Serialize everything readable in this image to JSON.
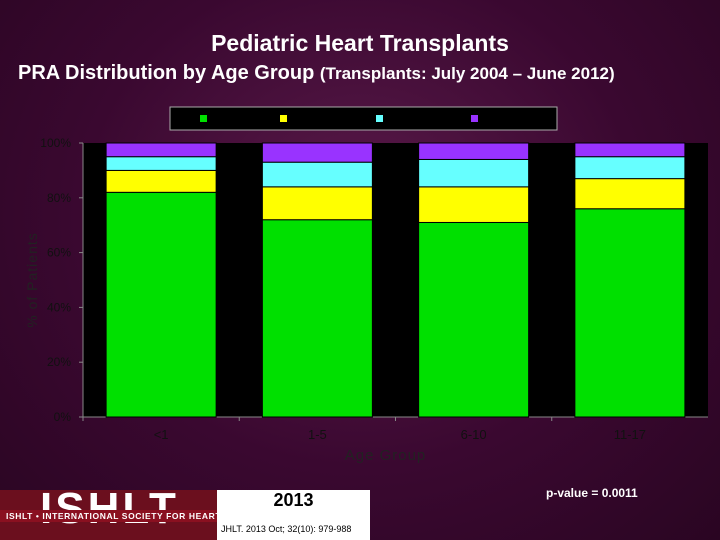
{
  "title": "Pediatric Heart Transplants",
  "subtitle_main": "PRA Distribution by Age Group",
  "subtitle_paren": "(Transplants: July 2004 – June 2012)",
  "footer": {
    "logo": "ISHLT",
    "logo_tagline": "ISHLT • INTERNATIONAL SOCIETY FOR HEART AND LUNG TRANSPLANTATION",
    "year": "2013",
    "citation": "JHLT. 2013 Oct; 32(10): 979-988",
    "p_value": "p-value = 0.0011"
  },
  "chart_data": {
    "type": "bar",
    "stacked": true,
    "title": "PRA Distribution by Age Group",
    "xlabel": "Age Group",
    "ylabel": "% of Patients",
    "ylim": [
      0,
      100
    ],
    "yticks": [
      "0%",
      "20%",
      "40%",
      "60%",
      "80%",
      "100%"
    ],
    "grid": false,
    "legend_position": "top",
    "categories": [
      "<1",
      "1-5",
      "6-10",
      "11-17"
    ],
    "series": [
      {
        "name": "",
        "color": "#00e000",
        "values": [
          82,
          72,
          71,
          76
        ]
      },
      {
        "name": "",
        "color": "#ffff00",
        "values": [
          8,
          12,
          13,
          11
        ]
      },
      {
        "name": "",
        "color": "#66ffff",
        "values": [
          5,
          9,
          10,
          8
        ]
      },
      {
        "name": "",
        "color": "#9933ff",
        "values": [
          5,
          7,
          6,
          5
        ]
      }
    ]
  }
}
